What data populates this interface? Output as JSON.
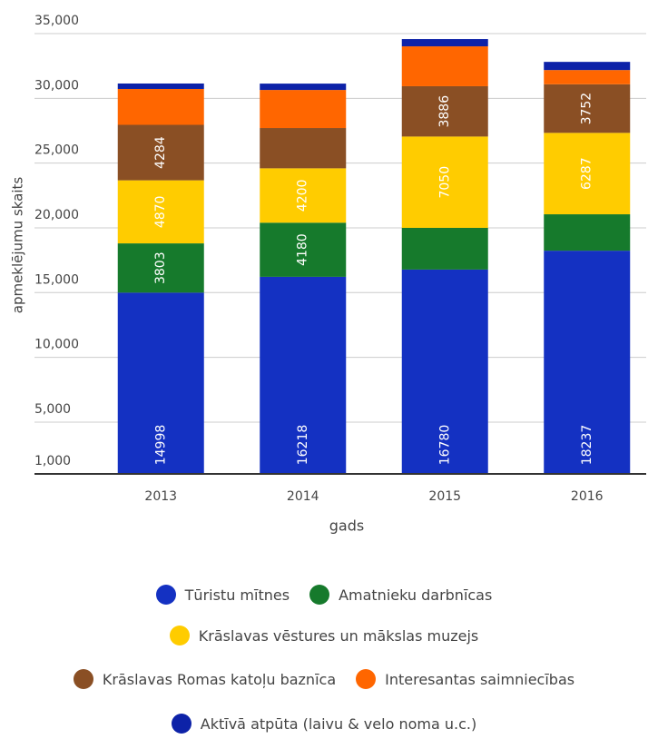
{
  "chart_data": {
    "type": "stacked_bar",
    "y_label": "apmeklējumu skaits",
    "x_label": "gads",
    "categories": [
      "2013",
      "2014",
      "2015",
      "2016"
    ],
    "series": [
      {
        "name": "Tūristu mītnes",
        "color": "#1431c2",
        "values": [
          14998,
          16218,
          16780,
          18237
        ]
      },
      {
        "name": "Amatnieku darbnīcas",
        "color": "#167a2c",
        "values": [
          3803,
          4180,
          3220,
          2810
        ]
      },
      {
        "name": "Krāslavas vēstures un mākslas muzejs",
        "color": "#ffcc00",
        "values": [
          4870,
          4200,
          7050,
          6287
        ]
      },
      {
        "name": "Krāslavas Romas katoļu baznīca",
        "color": "#8a4f24",
        "values": [
          4284,
          3110,
          3886,
          3752
        ]
      },
      {
        "name": "Interesantas saimniecības",
        "color": "#ff6600",
        "values": [
          2770,
          2940,
          3080,
          1100
        ]
      },
      {
        "name": "Aktīvā atpūta (laivu & velo noma u.c.)",
        "color": "#0d22a8",
        "values": [
          420,
          490,
          560,
          630
        ]
      }
    ],
    "ylim": [
      1000,
      35000
    ],
    "yticks": [
      {
        "value": 1000,
        "label": "1,000"
      },
      {
        "value": 5000,
        "label": "5,000"
      },
      {
        "value": 10000,
        "label": "10,000"
      },
      {
        "value": 15000,
        "label": "15,000"
      },
      {
        "value": 20000,
        "label": "20,000"
      },
      {
        "value": 25000,
        "label": "25,000"
      },
      {
        "value": 30000,
        "label": "30,000"
      },
      {
        "value": 35000,
        "label": "35,000"
      }
    ],
    "grid": true
  }
}
